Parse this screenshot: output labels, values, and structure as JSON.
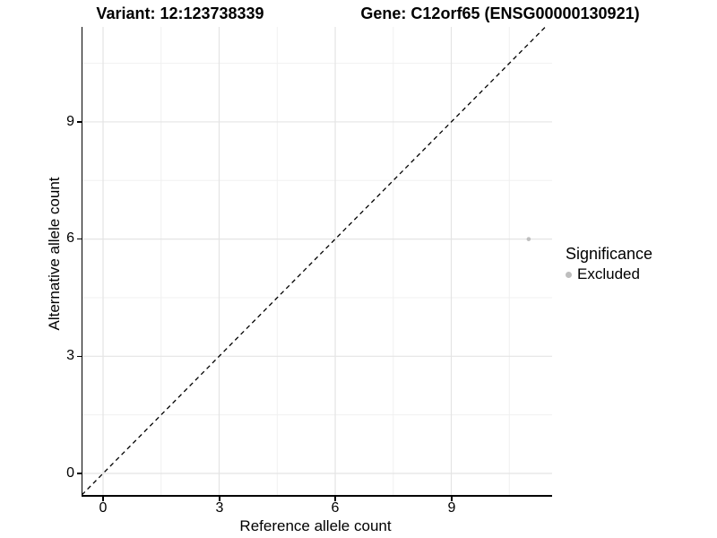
{
  "chart_data": {
    "type": "scatter",
    "titles": {
      "variant": "Variant: 12:123738339",
      "gene": "Gene: C12orf65 (ENSG00000130921)"
    },
    "xlabel": "Reference allele count",
    "ylabel": "Alternative allele count",
    "x_ticks": [
      "0",
      "3",
      "6",
      "9"
    ],
    "y_ticks": [
      "0",
      "3",
      "6",
      "9"
    ],
    "x_major": [
      0,
      3,
      6,
      9
    ],
    "x_minor": [
      1.5,
      4.5,
      7.5,
      10.5
    ],
    "y_major": [
      0,
      3,
      6,
      9
    ],
    "y_minor": [
      1.5,
      4.5,
      7.5,
      10.5
    ],
    "xlim": [
      -0.55,
      11.6
    ],
    "ylim": [
      -0.55,
      11.43
    ],
    "grid": "major+minor",
    "points": [
      {
        "x": 11,
        "y": 6,
        "significance": "Excluded"
      }
    ],
    "identity_line": {
      "slope": 1,
      "intercept": 0,
      "style": "dashed",
      "color": "#000000"
    },
    "legend": {
      "title": "Significance",
      "position": "right",
      "items": [
        {
          "label": "Excluded",
          "color": "#bebebe"
        }
      ]
    },
    "colors": {
      "point": "#bebebe",
      "grid_major": "#e4e4e4",
      "grid_minor": "#f0f0f0",
      "axis": "#000000",
      "background": "#ffffff"
    }
  }
}
